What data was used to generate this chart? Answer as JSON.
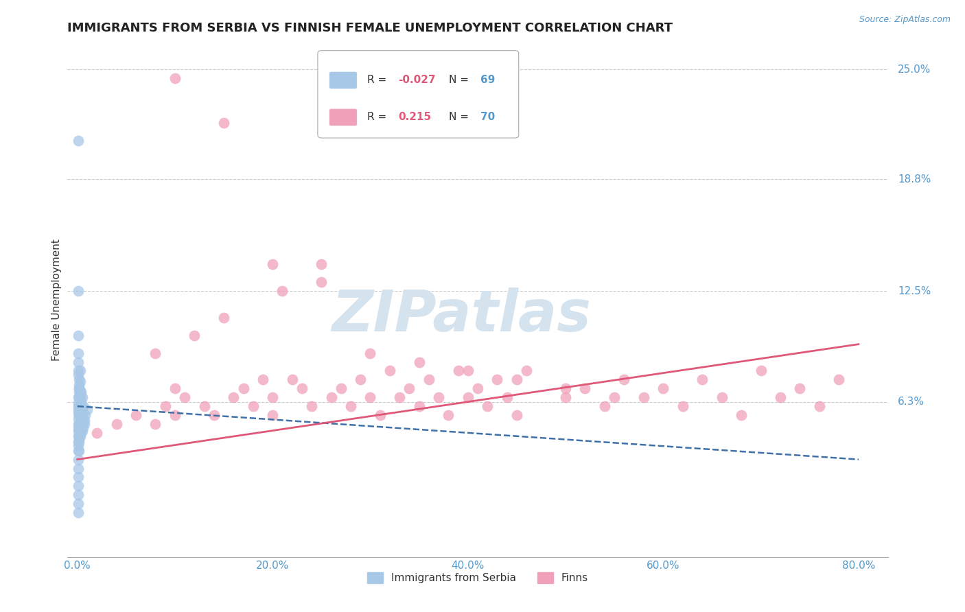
{
  "title": "IMMIGRANTS FROM SERBIA VS FINNISH FEMALE UNEMPLOYMENT CORRELATION CHART",
  "source": "Source: ZipAtlas.com",
  "ylabel": "Female Unemployment",
  "ytick_vals": [
    0.0625,
    0.125,
    0.188,
    0.25
  ],
  "ytick_labels": [
    "6.3%",
    "12.5%",
    "18.8%",
    "25.0%"
  ],
  "xtick_vals": [
    0.0,
    0.2,
    0.4,
    0.6,
    0.8
  ],
  "xtick_labels": [
    "0.0%",
    "20.0%",
    "40.0%",
    "60.0%",
    "80.0%"
  ],
  "xlim": [
    -0.01,
    0.83
  ],
  "ylim": [
    -0.025,
    0.265
  ],
  "blue_color": "#a8c8e8",
  "pink_color": "#f0a0b8",
  "blue_line_color": "#4070a8",
  "pink_line_color": "#e05878",
  "tick_color": "#5599cc",
  "title_color": "#222222",
  "title_fontsize": 13,
  "watermark": "ZIPatlas",
  "watermark_color": "#d5e3ee",
  "watermark_fontsize": 60,
  "legend_R_blue": "-0.027",
  "legend_N_blue": "69",
  "legend_R_pink": "0.215",
  "legend_N_pink": "70",
  "legend_label_blue": "Immigrants from Serbia",
  "legend_label_pink": "Finns",
  "blue_scatter_x": [
    0.001,
    0.001,
    0.001,
    0.001,
    0.001,
    0.001,
    0.001,
    0.001,
    0.001,
    0.001,
    0.001,
    0.001,
    0.001,
    0.001,
    0.001,
    0.001,
    0.001,
    0.001,
    0.001,
    0.001,
    0.002,
    0.002,
    0.002,
    0.002,
    0.002,
    0.002,
    0.002,
    0.002,
    0.002,
    0.002,
    0.003,
    0.003,
    0.003,
    0.003,
    0.003,
    0.003,
    0.003,
    0.003,
    0.004,
    0.004,
    0.004,
    0.004,
    0.005,
    0.005,
    0.005,
    0.006,
    0.006,
    0.007,
    0.008,
    0.01,
    0.001,
    0.001,
    0.001,
    0.001,
    0.001,
    0.001,
    0.002,
    0.002,
    0.002,
    0.003,
    0.003,
    0.004,
    0.004,
    0.005,
    0.005,
    0.006,
    0.007,
    0.002,
    0.001
  ],
  "blue_scatter_y": [
    0.21,
    0.005,
    0.01,
    0.015,
    0.02,
    0.025,
    0.03,
    0.035,
    0.038,
    0.04,
    0.043,
    0.046,
    0.048,
    0.05,
    0.053,
    0.056,
    0.058,
    0.06,
    0.062,
    0.065,
    0.04,
    0.042,
    0.044,
    0.046,
    0.05,
    0.055,
    0.06,
    0.065,
    0.07,
    0.075,
    0.043,
    0.047,
    0.052,
    0.057,
    0.062,
    0.068,
    0.074,
    0.08,
    0.045,
    0.05,
    0.058,
    0.068,
    0.046,
    0.055,
    0.065,
    0.048,
    0.06,
    0.052,
    0.055,
    0.058,
    0.125,
    0.1,
    0.09,
    0.085,
    0.08,
    0.078,
    0.072,
    0.07,
    0.068,
    0.066,
    0.064,
    0.062,
    0.059,
    0.057,
    0.054,
    0.052,
    0.05,
    0.035,
    0.0
  ],
  "pink_scatter_x": [
    0.02,
    0.04,
    0.06,
    0.08,
    0.08,
    0.09,
    0.1,
    0.1,
    0.11,
    0.12,
    0.13,
    0.14,
    0.15,
    0.16,
    0.17,
    0.18,
    0.19,
    0.2,
    0.2,
    0.21,
    0.22,
    0.23,
    0.24,
    0.25,
    0.26,
    0.27,
    0.28,
    0.29,
    0.3,
    0.31,
    0.32,
    0.33,
    0.34,
    0.35,
    0.36,
    0.37,
    0.38,
    0.39,
    0.4,
    0.41,
    0.42,
    0.43,
    0.44,
    0.45,
    0.46,
    0.5,
    0.52,
    0.54,
    0.56,
    0.58,
    0.6,
    0.62,
    0.64,
    0.66,
    0.68,
    0.7,
    0.72,
    0.74,
    0.76,
    0.78,
    0.1,
    0.15,
    0.2,
    0.25,
    0.3,
    0.35,
    0.4,
    0.45,
    0.5,
    0.55
  ],
  "pink_scatter_y": [
    0.045,
    0.05,
    0.055,
    0.09,
    0.05,
    0.06,
    0.055,
    0.07,
    0.065,
    0.1,
    0.06,
    0.055,
    0.11,
    0.065,
    0.07,
    0.06,
    0.075,
    0.065,
    0.055,
    0.125,
    0.075,
    0.07,
    0.06,
    0.14,
    0.065,
    0.07,
    0.06,
    0.075,
    0.065,
    0.055,
    0.08,
    0.065,
    0.07,
    0.06,
    0.075,
    0.065,
    0.055,
    0.08,
    0.065,
    0.07,
    0.06,
    0.075,
    0.065,
    0.055,
    0.08,
    0.065,
    0.07,
    0.06,
    0.075,
    0.065,
    0.07,
    0.06,
    0.075,
    0.065,
    0.055,
    0.08,
    0.065,
    0.07,
    0.06,
    0.075,
    0.245,
    0.22,
    0.14,
    0.13,
    0.09,
    0.085,
    0.08,
    0.075,
    0.07,
    0.065
  ],
  "blue_trend_x": [
    0.0,
    0.8
  ],
  "blue_trend_y": [
    0.06,
    0.03
  ],
  "pink_trend_x": [
    0.0,
    0.8
  ],
  "pink_trend_y": [
    0.03,
    0.095
  ],
  "bg_color": "#ffffff",
  "grid_color": "#cccccc"
}
